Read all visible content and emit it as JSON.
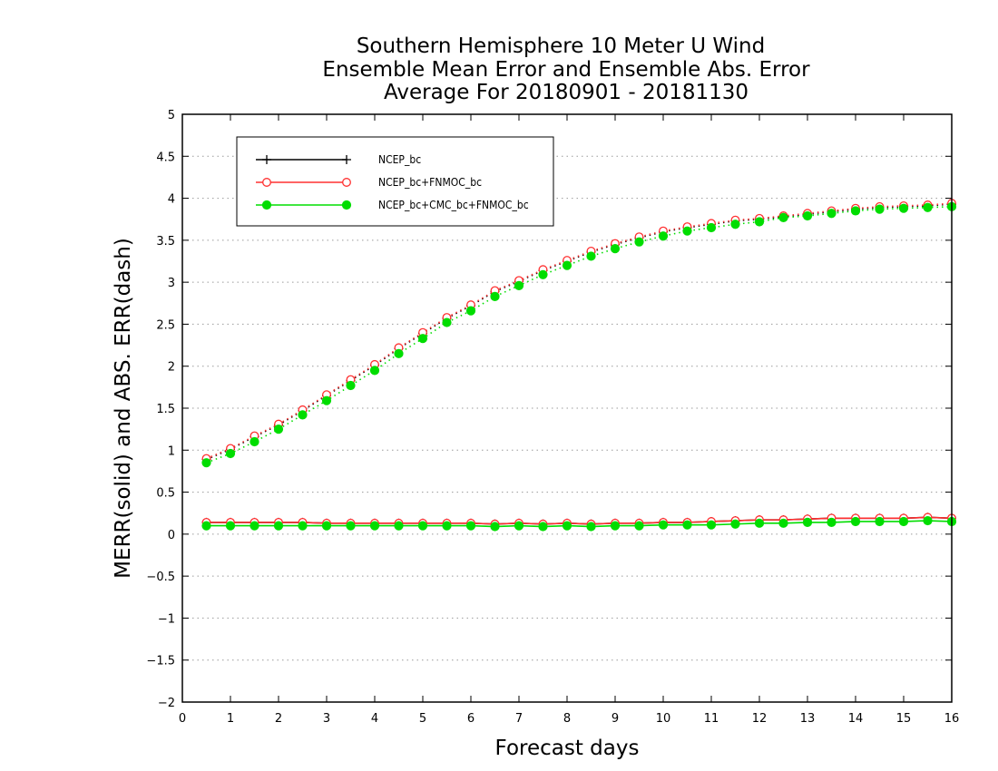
{
  "chart_data": {
    "type": "line",
    "title": [
      "Southern Hemisphere 10 Meter U Wind",
      "Ensemble Mean Error and Ensemble Abs. Error",
      "Average For 20180901 - 20181130"
    ],
    "xlabel": "Forecast days",
    "ylabel": "MERR(solid) and ABS. ERR(dash)",
    "xlim": [
      0,
      16
    ],
    "ylim": [
      -2,
      5
    ],
    "xticks": [
      "0",
      "1",
      "2",
      "3",
      "4",
      "5",
      "6",
      "7",
      "8",
      "9",
      "10",
      "11",
      "12",
      "13",
      "14",
      "15",
      "16"
    ],
    "yticks": [
      "5",
      "4.5",
      "4",
      "3.5",
      "3",
      "2.5",
      "2",
      "1.5",
      "1",
      "0.5",
      "0",
      "-0.5",
      "-1",
      "-1.5",
      "-2"
    ],
    "ytick_values": [
      5,
      4.5,
      4,
      3.5,
      3,
      2.5,
      2,
      1.5,
      1,
      0.5,
      0,
      -0.5,
      -1,
      -1.5,
      -2
    ],
    "grid": "horizontal dotted",
    "legend_position": "top-left",
    "x": [
      0.5,
      1,
      1.5,
      2,
      2.5,
      3,
      3.5,
      4,
      4.5,
      5,
      5.5,
      6,
      6.5,
      7,
      7.5,
      8,
      8.5,
      9,
      9.5,
      10,
      10.5,
      11,
      11.5,
      12,
      12.5,
      13,
      13.5,
      14,
      14.5,
      15,
      15.5,
      16
    ],
    "series": [
      {
        "name": "NCEP_bc",
        "color": "#000000",
        "marker": "plus",
        "merr": [
          0.14,
          0.14,
          0.14,
          0.14,
          0.14,
          0.13,
          0.13,
          0.13,
          0.13,
          0.13,
          0.13,
          0.13,
          0.12,
          0.13,
          0.12,
          0.13,
          0.12,
          0.13,
          0.13,
          0.14,
          0.14,
          0.15,
          0.16,
          0.17,
          0.17,
          0.18,
          0.19,
          0.19,
          0.19,
          0.19,
          0.2,
          0.19
        ],
        "abs_err": [
          0.89,
          1.01,
          1.16,
          1.3,
          1.47,
          1.65,
          1.83,
          2.01,
          2.21,
          2.39,
          2.57,
          2.72,
          2.89,
          3.01,
          3.14,
          3.25,
          3.36,
          3.45,
          3.53,
          3.6,
          3.65,
          3.69,
          3.73,
          3.75,
          3.78,
          3.81,
          3.84,
          3.87,
          3.89,
          3.9,
          3.91,
          3.93
        ]
      },
      {
        "name": "NCEP_bc+FNMOC_bc",
        "color": "#ff3030",
        "marker": "open-circle",
        "merr": [
          0.14,
          0.14,
          0.14,
          0.14,
          0.14,
          0.13,
          0.13,
          0.13,
          0.13,
          0.13,
          0.13,
          0.13,
          0.12,
          0.13,
          0.12,
          0.13,
          0.12,
          0.13,
          0.13,
          0.14,
          0.14,
          0.15,
          0.16,
          0.17,
          0.17,
          0.18,
          0.19,
          0.19,
          0.19,
          0.19,
          0.2,
          0.19
        ],
        "abs_err": [
          0.9,
          1.02,
          1.17,
          1.31,
          1.48,
          1.66,
          1.84,
          2.02,
          2.22,
          2.4,
          2.58,
          2.73,
          2.9,
          3.02,
          3.15,
          3.26,
          3.37,
          3.46,
          3.54,
          3.61,
          3.66,
          3.7,
          3.74,
          3.76,
          3.79,
          3.82,
          3.85,
          3.88,
          3.9,
          3.91,
          3.92,
          3.94
        ]
      },
      {
        "name": "NCEP_bc+CMC_bc+FNMOC_bc",
        "color": "#00dd00",
        "marker": "filled-circle",
        "merr": [
          0.1,
          0.1,
          0.1,
          0.1,
          0.1,
          0.1,
          0.1,
          0.1,
          0.1,
          0.1,
          0.1,
          0.1,
          0.09,
          0.1,
          0.09,
          0.1,
          0.09,
          0.1,
          0.1,
          0.11,
          0.11,
          0.11,
          0.12,
          0.13,
          0.13,
          0.14,
          0.14,
          0.15,
          0.15,
          0.15,
          0.16,
          0.15
        ],
        "abs_err": [
          0.85,
          0.96,
          1.1,
          1.25,
          1.42,
          1.59,
          1.77,
          1.95,
          2.15,
          2.33,
          2.52,
          2.66,
          2.83,
          2.96,
          3.09,
          3.2,
          3.31,
          3.4,
          3.48,
          3.55,
          3.61,
          3.65,
          3.69,
          3.72,
          3.77,
          3.79,
          3.82,
          3.85,
          3.87,
          3.88,
          3.89,
          3.9
        ]
      }
    ]
  }
}
